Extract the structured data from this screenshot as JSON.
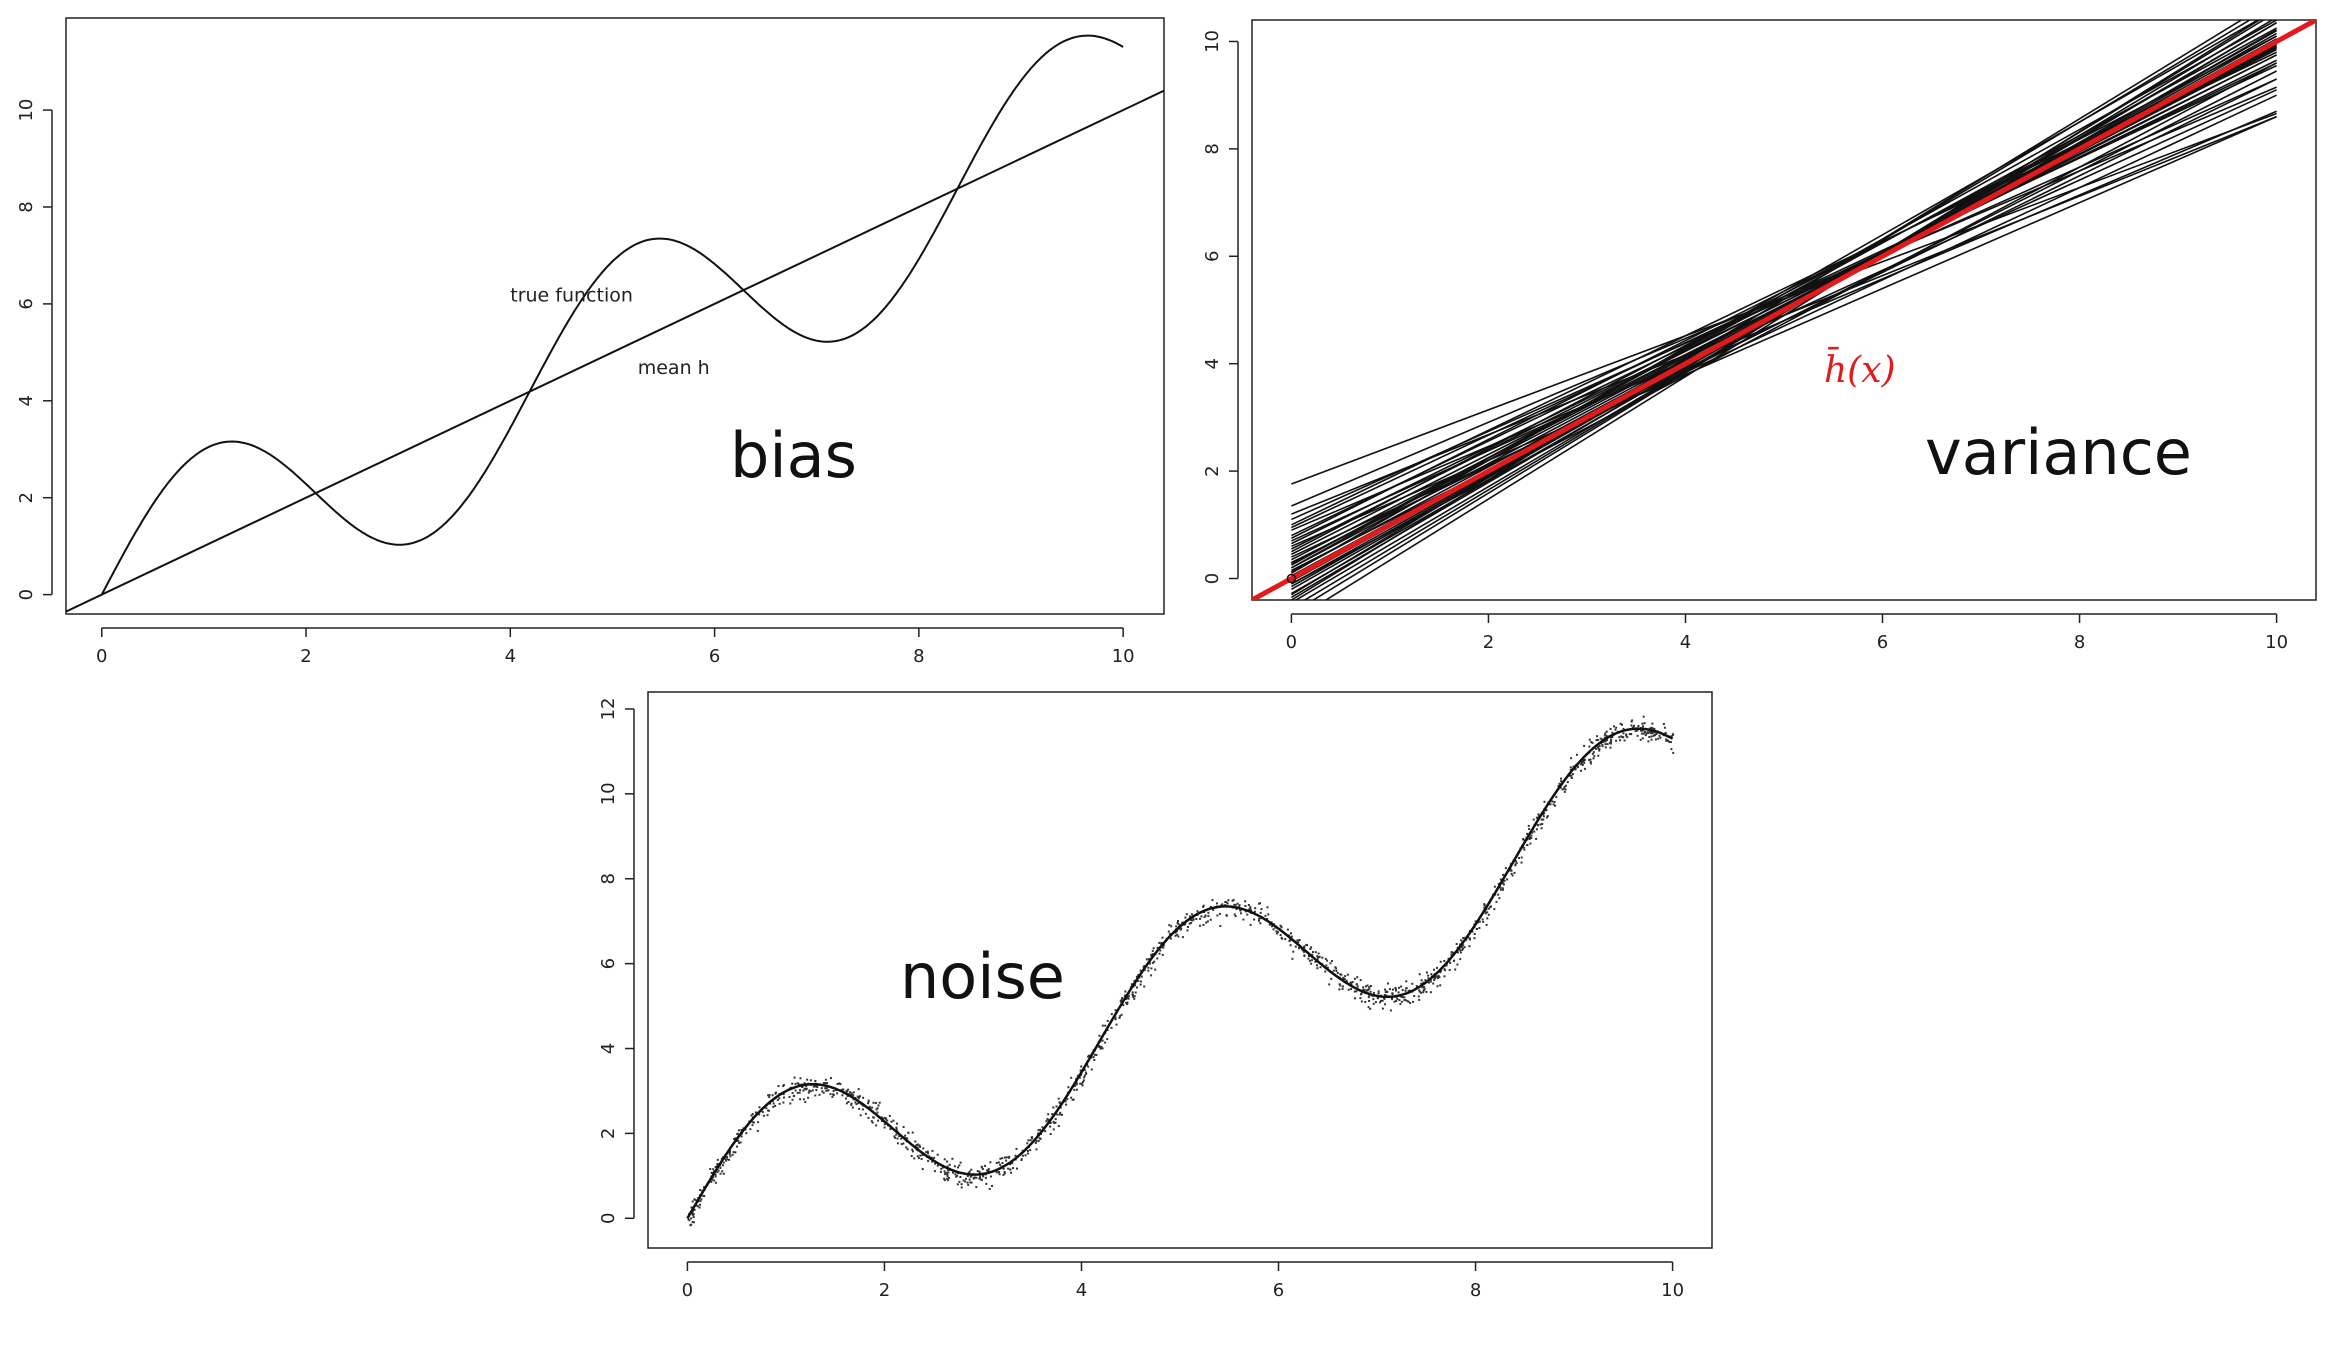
{
  "chart_data": [
    {
      "id": "bias",
      "type": "line",
      "panel_label": "bias",
      "xlim": [
        -0.35,
        10.4
      ],
      "ylim": [
        -0.4,
        11.9
      ],
      "x_ticks": [
        0,
        2,
        4,
        6,
        8,
        10
      ],
      "y_ticks": [
        0,
        2,
        4,
        6,
        8,
        10
      ],
      "x_tick_labels": [
        "0",
        "2",
        "4",
        "6",
        "8",
        "10"
      ],
      "y_tick_labels": [
        "0",
        "2",
        "4",
        "6",
        "8",
        "10"
      ],
      "grid": false,
      "annotations": [
        {
          "text": "true function",
          "x": 4.6,
          "y": 6.05
        },
        {
          "text": "mean h",
          "x": 5.6,
          "y": 4.55
        }
      ],
      "series": [
        {
          "kind": "true-function",
          "x_range": [
            0,
            10
          ],
          "formula": "x + 2*sin(1.5*x)"
        },
        {
          "kind": "mean-h",
          "x": [
            -0.35,
            10.4
          ],
          "y": [
            -0.35,
            10.4
          ]
        }
      ]
    },
    {
      "id": "variance",
      "type": "line",
      "panel_label": "variance",
      "xlim": [
        -0.4,
        10.4
      ],
      "ylim": [
        -0.4,
        10.4
      ],
      "x_ticks": [
        0,
        2,
        4,
        6,
        8,
        10
      ],
      "y_ticks": [
        0,
        2,
        4,
        6,
        8,
        10
      ],
      "x_tick_labels": [
        "0",
        "2",
        "4",
        "6",
        "8",
        "10"
      ],
      "y_tick_labels": [
        "0",
        "2",
        "4",
        "6",
        "8",
        "10"
      ],
      "grid": false,
      "mean_label": "h̄(x)",
      "mean_color": "#e31a1c",
      "mean_line": {
        "x": [
          -0.4,
          10.4
        ],
        "y": [
          -0.4,
          10.4
        ]
      },
      "fits_x_range": [
        0,
        10
      ],
      "fits": [
        {
          "a": 1.76,
          "b": 0.69
        },
        {
          "a": 1.35,
          "b": 0.78
        },
        {
          "a": 1.1,
          "b": 0.82
        },
        {
          "a": 0.95,
          "b": 0.86
        },
        {
          "a": 0.8,
          "b": 0.88
        },
        {
          "a": 0.65,
          "b": 0.9
        },
        {
          "a": 0.55,
          "b": 0.92
        },
        {
          "a": 0.45,
          "b": 0.93
        },
        {
          "a": 0.35,
          "b": 0.95
        },
        {
          "a": 0.28,
          "b": 0.96
        },
        {
          "a": 0.2,
          "b": 0.97
        },
        {
          "a": 0.12,
          "b": 0.98
        },
        {
          "a": 0.05,
          "b": 0.99
        },
        {
          "a": 0.0,
          "b": 1.0
        },
        {
          "a": -0.05,
          "b": 1.01
        },
        {
          "a": -0.1,
          "b": 1.02
        },
        {
          "a": -0.15,
          "b": 1.03
        },
        {
          "a": -0.2,
          "b": 1.04
        },
        {
          "a": -0.28,
          "b": 1.05
        },
        {
          "a": -0.35,
          "b": 1.07
        },
        {
          "a": -0.45,
          "b": 1.08
        },
        {
          "a": -0.55,
          "b": 1.1
        },
        {
          "a": -0.65,
          "b": 1.12
        },
        {
          "a": -0.8,
          "b": 1.14
        },
        {
          "a": 0.4,
          "b": 0.86
        },
        {
          "a": 0.9,
          "b": 0.78
        },
        {
          "a": 0.7,
          "b": 0.84
        },
        {
          "a": 0.3,
          "b": 0.9
        },
        {
          "a": 0.15,
          "b": 0.93
        },
        {
          "a": -0.1,
          "b": 0.97
        },
        {
          "a": 1.2,
          "b": 0.74
        },
        {
          "a": 0.6,
          "b": 0.8
        },
        {
          "a": 0.5,
          "b": 0.96
        },
        {
          "a": 0.25,
          "b": 1.0
        },
        {
          "a": -0.3,
          "b": 1.1
        },
        {
          "a": 0.1,
          "b": 1.05
        },
        {
          "a": -0.4,
          "b": 1.12
        },
        {
          "a": 0.75,
          "b": 0.92
        },
        {
          "a": 1.0,
          "b": 0.88
        },
        {
          "a": 0.2,
          "b": 1.02
        }
      ]
    },
    {
      "id": "noise",
      "type": "scatter",
      "panel_label": "noise",
      "xlim": [
        -0.4,
        10.4
      ],
      "ylim": [
        -0.7,
        12.4
      ],
      "x_ticks": [
        0,
        2,
        4,
        6,
        8,
        10
      ],
      "y_ticks": [
        0,
        2,
        4,
        6,
        8,
        10,
        12
      ],
      "x_tick_labels": [
        "0",
        "2",
        "4",
        "6",
        "8",
        "10"
      ],
      "y_tick_labels": [
        "0",
        "2",
        "4",
        "6",
        "8",
        "10",
        "12"
      ],
      "grid": false,
      "curve": {
        "x_range": [
          0,
          10
        ],
        "formula": "x + 2*sin(1.5*x)"
      },
      "points": {
        "n": 1500,
        "noise_sd": 0.2
      }
    }
  ]
}
